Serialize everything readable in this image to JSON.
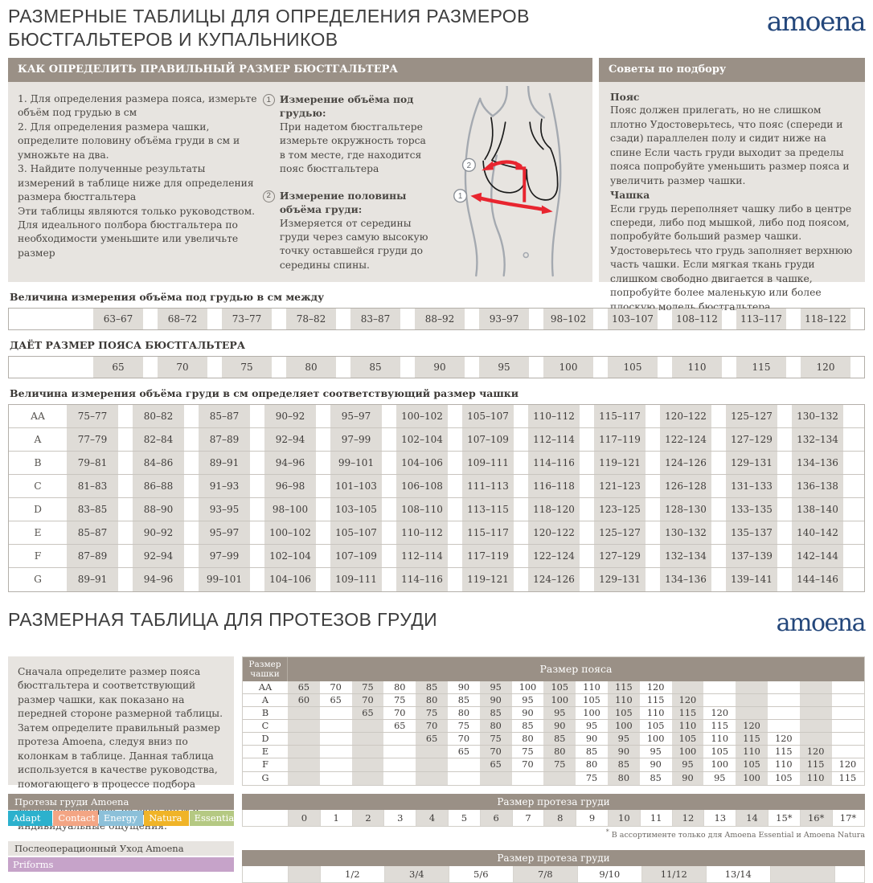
{
  "colors": {
    "taupe": "#9a9086",
    "panel": "#e7e4e0",
    "cell": "#dfdcd7",
    "brand_blue": "#24477b",
    "arrow_red": "#e8252f"
  },
  "page": {
    "title_line1": "РАЗМЕРНЫЕ ТАБЛИЦЫ ДЛЯ ОПРЕДЕЛЕНИЯ РАЗМЕРОВ",
    "title_line2": "БЮСТГАЛЬТЕРОВ И КУПАЛЬНИКОВ",
    "brand": "amoena"
  },
  "section1": {
    "header_left": "КАК ОПРЕДЕЛИТЬ ПРАВИЛЬНЫЙ РАЗМЕР БЮСТГАЛЬТЕРА",
    "header_right": "Советы по подбору",
    "steps": [
      "1. Для определения размера пояса, измерьте объём под грудью в см",
      "2.  Для определения размера чашки, определите половину объёма груди в см и умножьте на два.",
      "3.  Найдите полученные результаты измерений в таблице ниже для определения размера бюстгальтера"
    ],
    "note": "Эти таблицы являются только руководством. Для идеального полбора бюстгальтера по необходимости уменьшите или увеличьте размер",
    "measure1_num": "1",
    "measure1_title": "Измерение объёма под грудью:",
    "measure1_text": "При надетом бюстгальтере измерьте окружность торса в том месте, где находится пояс бюстгальтера",
    "measure2_num": "2",
    "measure2_title": "Измерение половины объёма груди:",
    "measure2_text": "Измеряется от середины груди через самую высокую точку оставшейся груди до середины спины.",
    "tips": {
      "belt_title": "Пояс",
      "belt_text": "Пояс должен прилегать, но не слишком плотно Удостоверьтесь, что пояс (спереди и сзади) параллелен полу и сидит ниже на спине Если часть груди выходит за пределы пояса попробуйте уменьшить размер пояса и увеличить размер чашки.",
      "cup_title": "Чашка",
      "cup_text": "Если грудь переполняет чашку либо в центре спереди, либо под мышкой, либо под поясом, попробуйте больший размер чашки. Удостоверьтесь что грудь заполняет верхнюю часть чашки. Если мягкая ткань груди слишком свободно двигается в чашке, попробуйте более маленькую или более плоскую модель бюстгальтера"
    }
  },
  "underbust": {
    "caption": "Величина измерения объёма под грудью в см между",
    "values": [
      "63–67",
      "68–72",
      "73–77",
      "78–82",
      "83–87",
      "88–92",
      "93–97",
      "98–102",
      "103–107",
      "108–112",
      "113–117",
      "118–122"
    ]
  },
  "band": {
    "caption": "ДАЁТ РАЗМЕР ПОЯСА БЮСТГАЛЬТЕРА",
    "values": [
      "65",
      "70",
      "75",
      "80",
      "85",
      "90",
      "95",
      "100",
      "105",
      "110",
      "115",
      "120"
    ]
  },
  "cup_table": {
    "caption": "Величина измерения объёма груди в см определяет соответствующий размер чашки",
    "rows": [
      {
        "label": "AA",
        "cells": [
          "75–77",
          "80–82",
          "85–87",
          "90–92",
          "95–97",
          "100–102",
          "105–107",
          "110–112",
          "115–117",
          "120–122",
          "125–127",
          "130–132"
        ]
      },
      {
        "label": "A",
        "cells": [
          "77–79",
          "82–84",
          "87–89",
          "92–94",
          "97–99",
          "102–104",
          "107–109",
          "112–114",
          "117–119",
          "122–124",
          "127–129",
          "132–134"
        ]
      },
      {
        "label": "B",
        "cells": [
          "79–81",
          "84–86",
          "89–91",
          "94–96",
          "99–101",
          "104–106",
          "109–111",
          "114–116",
          "119–121",
          "124–126",
          "129–131",
          "134–136"
        ]
      },
      {
        "label": "C",
        "cells": [
          "81–83",
          "86–88",
          "91–93",
          "96–98",
          "101–103",
          "106–108",
          "111–113",
          "116–118",
          "121–123",
          "126–128",
          "131–133",
          "136–138"
        ]
      },
      {
        "label": "D",
        "cells": [
          "83–85",
          "88–90",
          "93–95",
          "98–100",
          "103–105",
          "108–110",
          "113–115",
          "118–120",
          "123–125",
          "128–130",
          "133–135",
          "138–140"
        ]
      },
      {
        "label": "E",
        "cells": [
          "85–87",
          "90–92",
          "95–97",
          "100–102",
          "105–107",
          "110–112",
          "115–117",
          "120–122",
          "125–127",
          "130–132",
          "135–137",
          "140–142"
        ]
      },
      {
        "label": "F",
        "cells": [
          "87–89",
          "92–94",
          "97–99",
          "102–104",
          "107–109",
          "112–114",
          "117–119",
          "122–124",
          "127–129",
          "132–134",
          "137–139",
          "142–144"
        ]
      },
      {
        "label": "G",
        "cells": [
          "89–91",
          "94–96",
          "99–101",
          "104–106",
          "109–111",
          "114–116",
          "119–121",
          "124–126",
          "129–131",
          "134–136",
          "139–141",
          "144–146"
        ]
      }
    ]
  },
  "section2": {
    "title": "РАЗМЕРНАЯ ТАБЛИЦА ДЛЯ ПРОТЕЗОВ ГРУДИ",
    "brand": "amoena",
    "intro": "Сначала определите размер пояса бюстгальтера и соответствующий размер чашки, как показано на передней стороне размерной таблицы. Затем определите правильный размер протеза Amoena, следуя вниз по колонкам в таблице. Данная таблица используется в качестве руководства, помогающего в процессе подбора экзопротеза. Однако, пожалуйста, также полагайтесь на свой опыт и индивидуальные ощущения.",
    "band_table": {
      "col_header": "Размер чашки",
      "row_header": "Размер пояса",
      "rows": [
        {
          "label": "AA",
          "cells": [
            "65",
            "70",
            "75",
            "80",
            "85",
            "90",
            "95",
            "100",
            "105",
            "110",
            "115",
            "120",
            "",
            "",
            "",
            "",
            "",
            ""
          ]
        },
        {
          "label": "A",
          "cells": [
            "60",
            "65",
            "70",
            "75",
            "80",
            "85",
            "90",
            "95",
            "100",
            "105",
            "110",
            "115",
            "120",
            "",
            "",
            "",
            "",
            ""
          ]
        },
        {
          "label": "B",
          "cells": [
            "",
            "",
            "65",
            "70",
            "75",
            "80",
            "85",
            "90",
            "95",
            "100",
            "105",
            "110",
            "115",
            "120",
            "",
            "",
            "",
            ""
          ]
        },
        {
          "label": "C",
          "cells": [
            "",
            "",
            "",
            "65",
            "70",
            "75",
            "80",
            "85",
            "90",
            "95",
            "100",
            "105",
            "110",
            "115",
            "120",
            "",
            "",
            ""
          ]
        },
        {
          "label": "D",
          "cells": [
            "",
            "",
            "",
            "",
            "65",
            "70",
            "75",
            "80",
            "85",
            "90",
            "95",
            "100",
            "105",
            "110",
            "115",
            "120",
            "",
            ""
          ]
        },
        {
          "label": "E",
          "cells": [
            "",
            "",
            "",
            "",
            "",
            "65",
            "70",
            "75",
            "80",
            "85",
            "90",
            "95",
            "100",
            "105",
            "110",
            "115",
            "120",
            ""
          ]
        },
        {
          "label": "F",
          "cells": [
            "",
            "",
            "",
            "",
            "",
            "",
            "65",
            "70",
            "75",
            "80",
            "85",
            "90",
            "95",
            "100",
            "105",
            "110",
            "115",
            "120"
          ]
        },
        {
          "label": "G",
          "cells": [
            "",
            "",
            "",
            "",
            "",
            "",
            "",
            "",
            "",
            "75",
            "80",
            "85",
            "90",
            "95",
            "100",
            "105",
            "110",
            "115"
          ]
        }
      ]
    },
    "products": {
      "bar": "Протезы груди Amoena",
      "chips": [
        {
          "label": "Adapt",
          "color": "#2cb1cd"
        },
        {
          "label": "Contact",
          "color": "#f3a584"
        },
        {
          "label": "Energy",
          "color": "#8cc0d9"
        },
        {
          "label": "Natura",
          "color": "#f0b428"
        },
        {
          "label": "Essential",
          "color": "#b5c983"
        }
      ]
    },
    "prosthesis_sizes": {
      "header": "Размер протеза груди",
      "values": [
        "0",
        "1",
        "2",
        "3",
        "4",
        "5",
        "6",
        "7",
        "8",
        "9",
        "10",
        "11",
        "12",
        "13",
        "14",
        "15*",
        "16*",
        "17*"
      ],
      "footnote_mark": "*",
      "footnote_text": "В ассортименте только для  Amoena Essential и Amoena Natura"
    },
    "aftercare": {
      "bar": "Послеоперационный Уход Amoena",
      "chip": {
        "label": "Priforms",
        "color": "#c6a3c9"
      },
      "sizes_header": "Размер протеза груди",
      "values": [
        "1/2",
        "3/4",
        "5/6",
        "7/8",
        "9/10",
        "11/12",
        "13/14"
      ]
    }
  }
}
